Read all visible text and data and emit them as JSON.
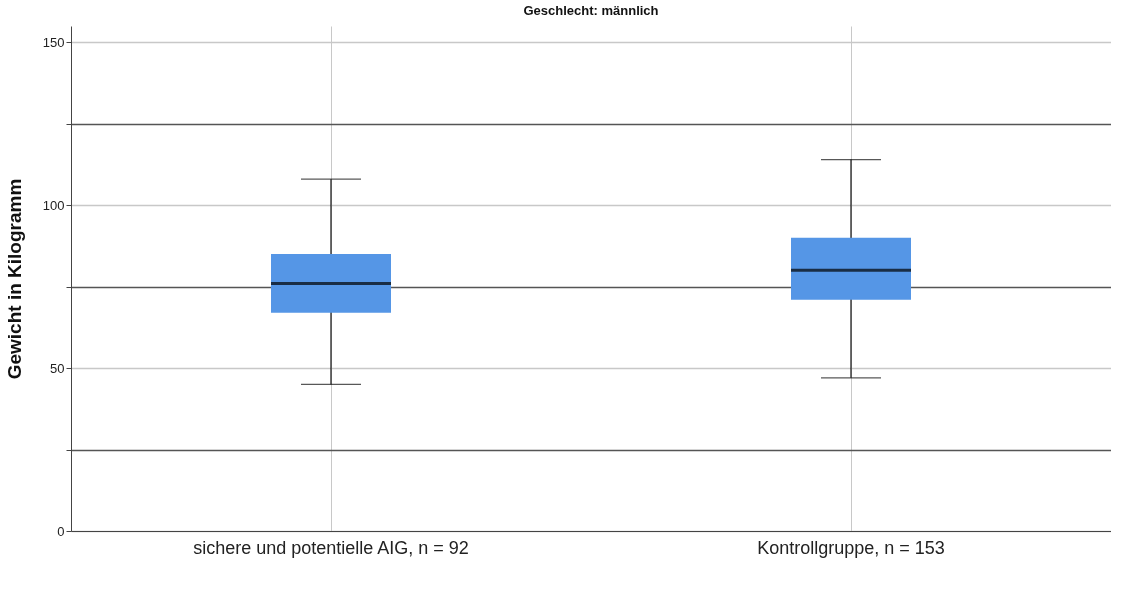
{
  "chart_data": {
    "type": "box",
    "title": "Geschlecht: männlich",
    "ylabel": "Gewicht in Kilogramm",
    "categories": [
      "sichere und potentielle AIG, n = 92",
      "Kontrollgruppe, n = 153"
    ],
    "series": [
      {
        "color": "#5596e6",
        "boxes": [
          {
            "low": 45,
            "q1": 67,
            "median": 76,
            "q3": 85,
            "high": 108
          },
          {
            "low": 47,
            "q1": 71,
            "median": 80,
            "q3": 90,
            "high": 114
          }
        ]
      }
    ],
    "ylim": [
      0,
      155
    ],
    "yticks": [
      0,
      {
        "value": 25,
        "label": null
      },
      50,
      {
        "value": 75,
        "label": null
      },
      100,
      {
        "value": 125,
        "label": null
      },
      150
    ],
    "grid": true
  }
}
